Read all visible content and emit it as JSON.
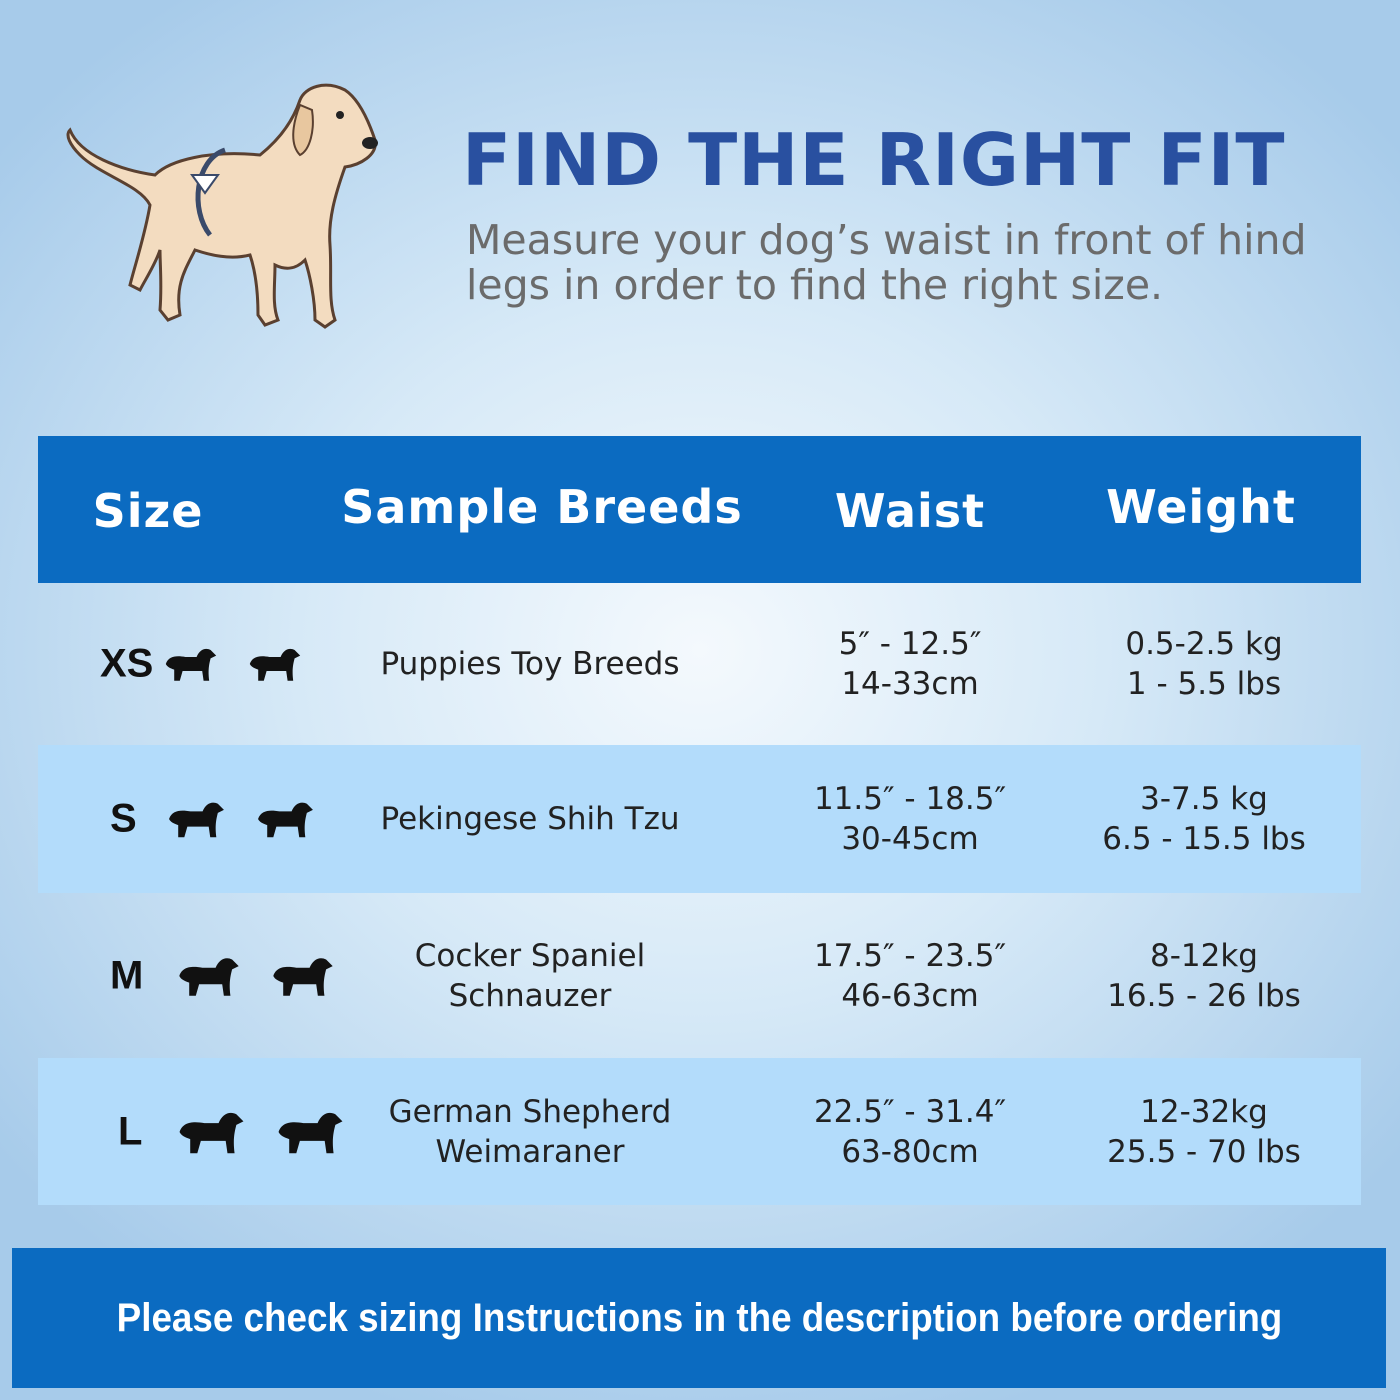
{
  "header": {
    "title": "FIND THE RIGHT FIT",
    "subtitle": "Measure your dog’s waist in front of hind legs in order to find the right size.",
    "illustration": "dog-measuring-waist-icon"
  },
  "table": {
    "columns": [
      "Size",
      "Sample Breeds",
      "Waist",
      "Weight"
    ],
    "rows": [
      {
        "size": "XS",
        "breeds": [
          "Puppies Toy Breeds"
        ],
        "waist": [
          "5″ - 12.5″",
          "14-33cm"
        ],
        "weight": [
          "0.5-2.5 kg",
          "1 - 5.5 lbs"
        ]
      },
      {
        "size": "S",
        "breeds": [
          "Pekingese Shih Tzu"
        ],
        "waist": [
          "11.5″ - 18.5″",
          "30-45cm"
        ],
        "weight": [
          "3-7.5 kg",
          "6.5 - 15.5 lbs"
        ]
      },
      {
        "size": "M",
        "breeds": [
          "Cocker Spaniel",
          "Schnauzer"
        ],
        "waist": [
          "17.5″ - 23.5″",
          "46-63cm"
        ],
        "weight": [
          "8-12kg",
          "16.5 - 26 lbs"
        ]
      },
      {
        "size": "L",
        "breeds": [
          "German Shepherd",
          "Weimaraner"
        ],
        "waist": [
          "22.5″ - 31.4″",
          "63-80cm"
        ],
        "weight": [
          "12-32kg",
          "25.5 - 70 lbs"
        ]
      }
    ]
  },
  "footer": {
    "text": "Please check sizing Instructions in the description before ordering"
  },
  "colors": {
    "accent": "#0b6bc1",
    "title": "#2950a0",
    "alt_row": "#b3dcfb"
  }
}
